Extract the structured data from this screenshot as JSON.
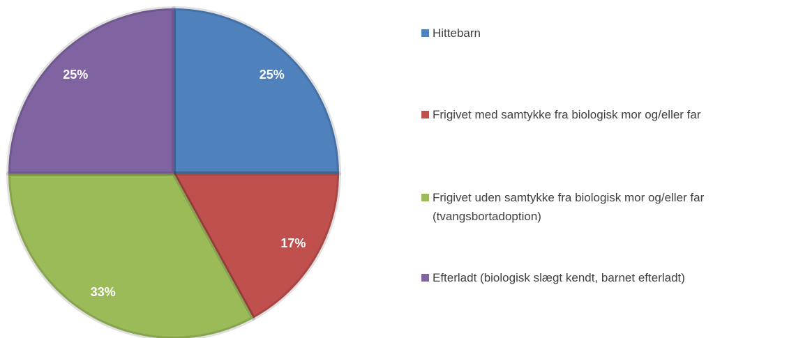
{
  "chart_data": {
    "type": "pie",
    "categories": [
      "Hittebarn",
      "Frigivet med samtykke fra biologisk mor og/eller far",
      "Frigivet uden samtykke fra biologisk mor og/eller far (tvangsbortadoption)",
      "Efterladt (biologisk slægt kendt, barnet efterladt)"
    ],
    "values": [
      25,
      17,
      33,
      25
    ],
    "value_labels": [
      "25%",
      "17%",
      "33%",
      "25%"
    ],
    "colors": [
      "#4f81bd",
      "#c0504d",
      "#9bbb59",
      "#8064a2"
    ],
    "legend": "right"
  }
}
